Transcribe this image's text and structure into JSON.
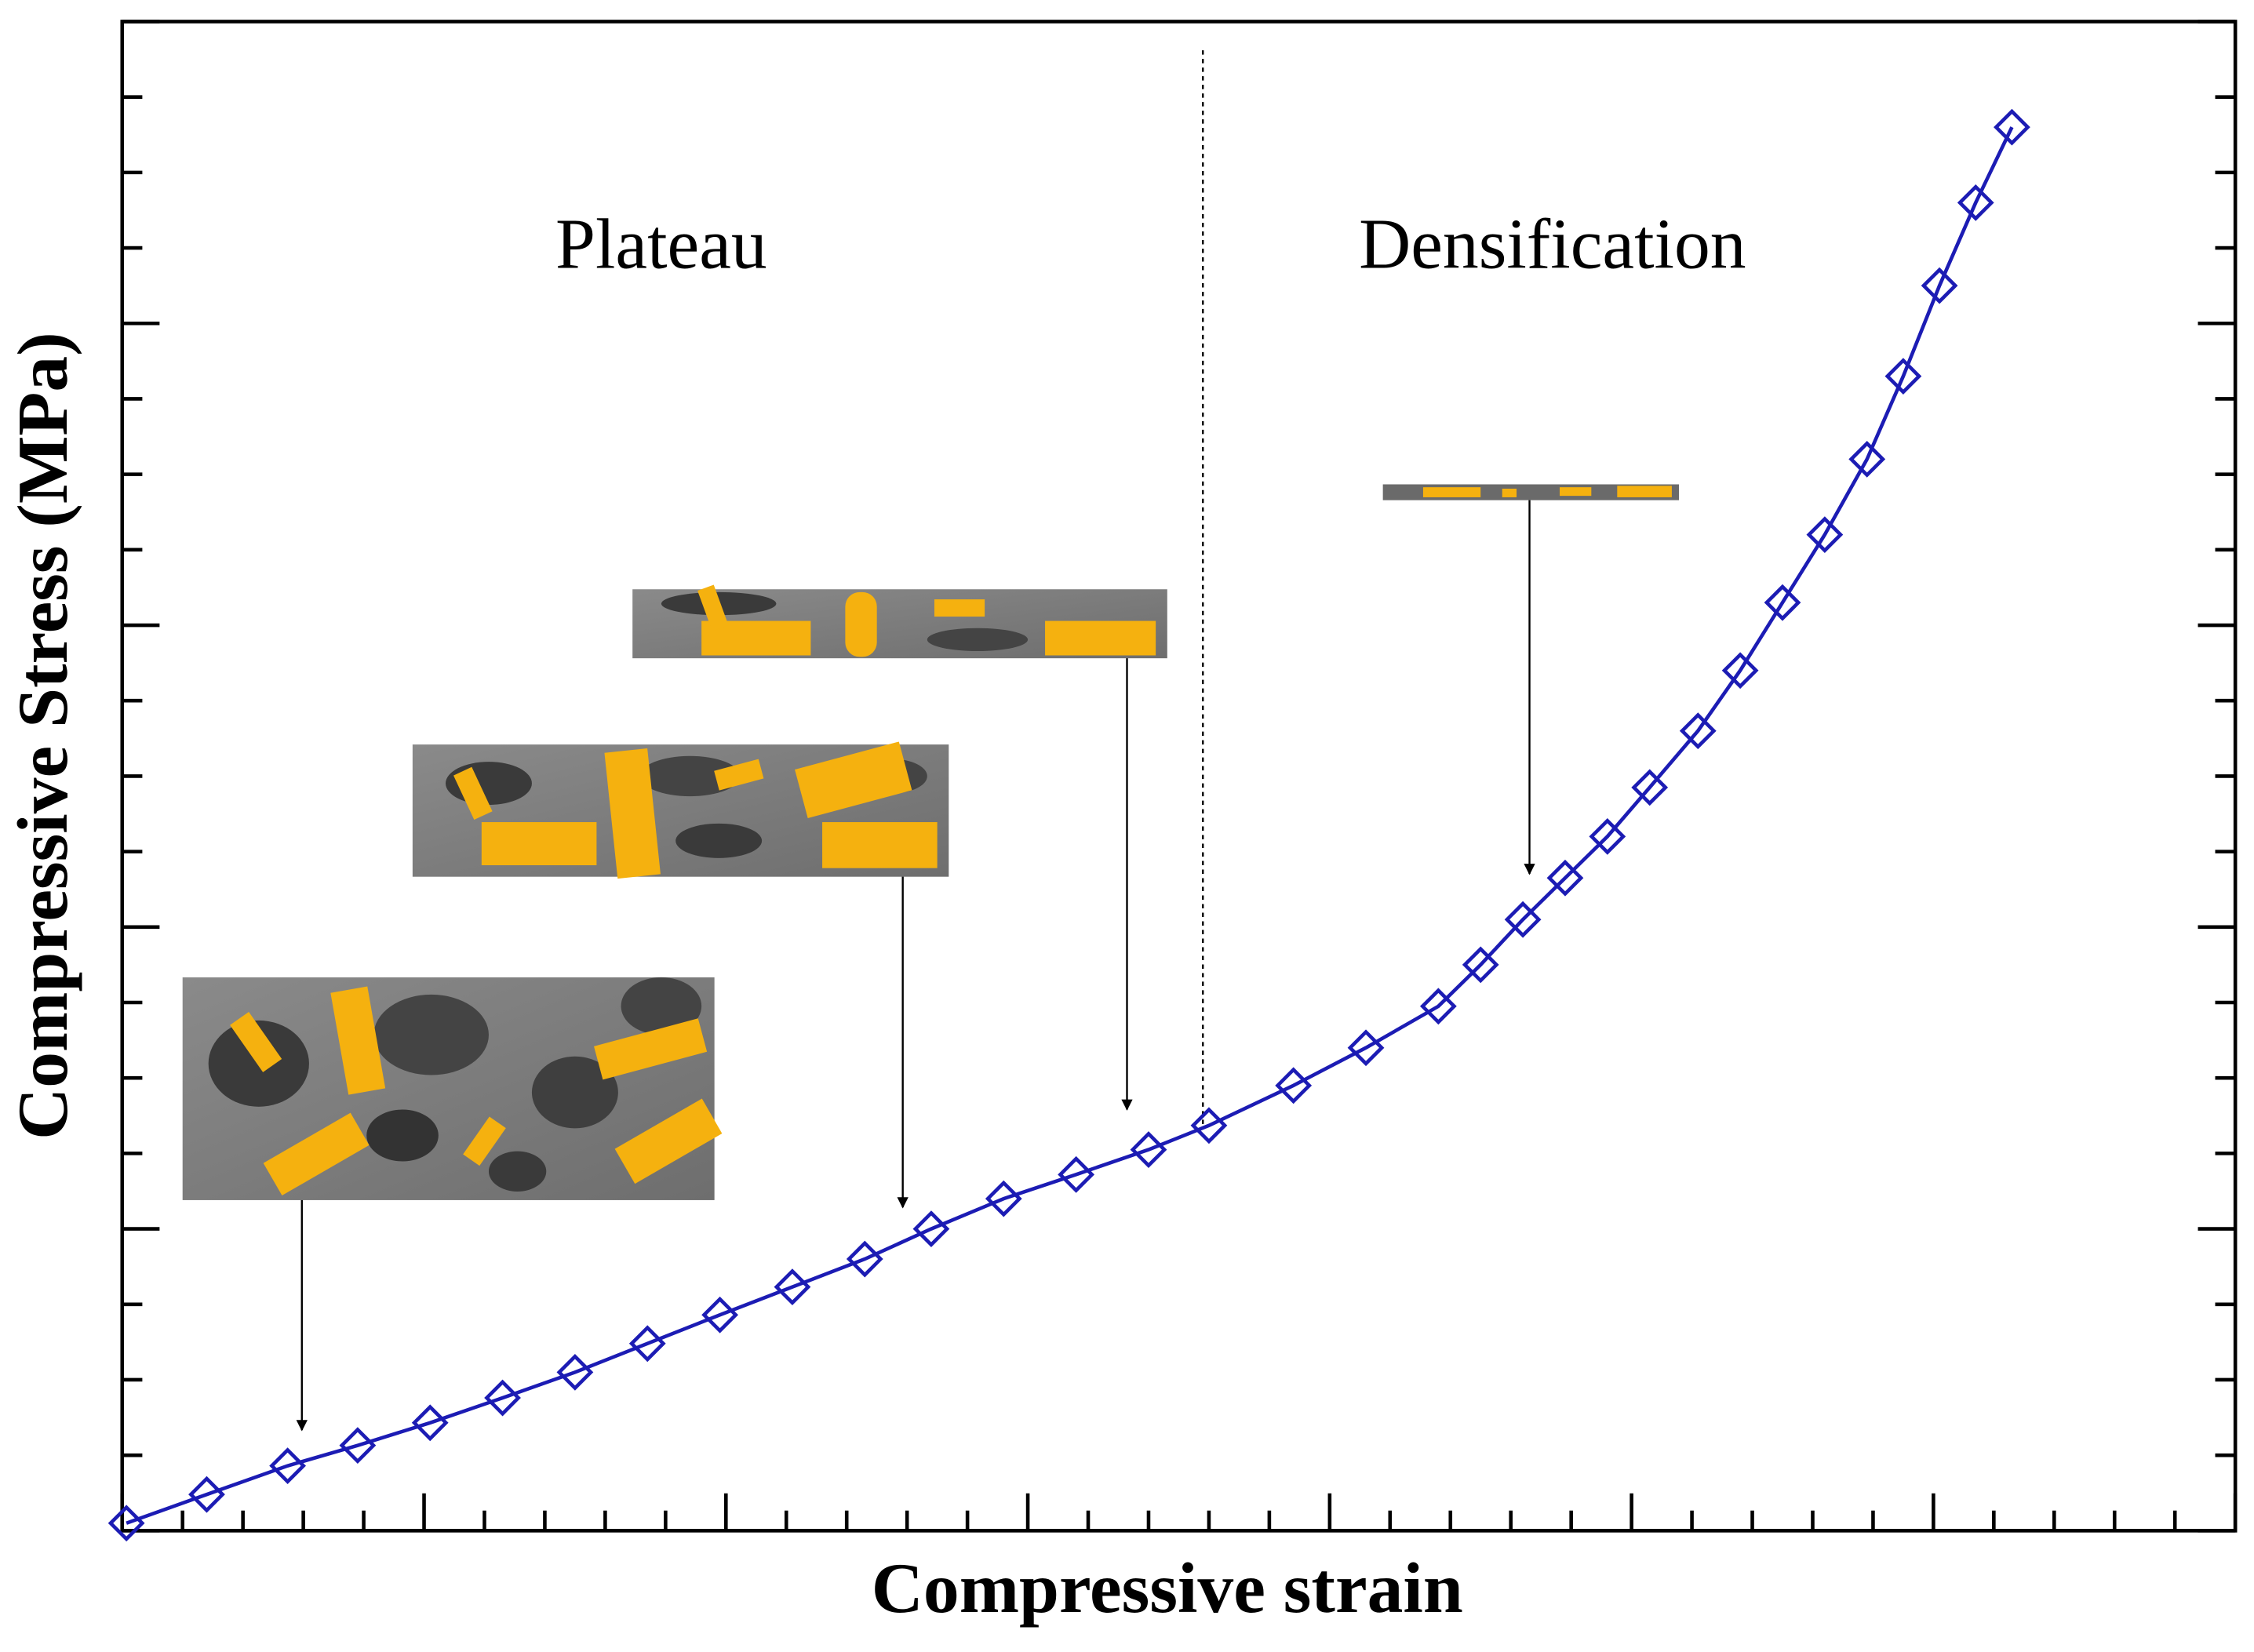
{
  "chart_data": {
    "type": "line",
    "x_label": "Compressive strain",
    "y_label": "Compressive Stress (MPa)",
    "regions": [
      "Plateau",
      "Densification"
    ],
    "boundary": 17.9,
    "x": [
      0.07,
      1.4,
      2.74,
      3.9,
      5.1,
      6.3,
      7.5,
      8.7,
      9.9,
      11.1,
      12.3,
      13.4,
      14.6,
      15.8,
      17.0,
      18.0,
      19.4,
      20.6,
      21.8,
      22.5,
      23.2,
      23.9,
      24.6,
      25.3,
      26.1,
      26.8,
      27.5,
      28.2,
      28.9,
      29.5,
      30.1,
      30.7,
      31.3
    ],
    "series": [
      {
        "name": null,
        "color": "#1c1cb4",
        "values": [
          0.1,
          0.48,
          0.86,
          1.13,
          1.43,
          1.76,
          2.1,
          2.48,
          2.86,
          3.23,
          3.6,
          4.0,
          4.4,
          4.72,
          5.05,
          5.37,
          5.9,
          6.4,
          6.95,
          7.5,
          8.1,
          8.65,
          9.2,
          9.85,
          10.6,
          11.4,
          12.3,
          13.2,
          14.2,
          15.3,
          16.5,
          17.6,
          18.6
        ]
      }
    ],
    "xlim": [
      0,
      35
    ],
    "ylim": [
      0,
      20
    ],
    "xticks": [
      0,
      1,
      2,
      3,
      4,
      5,
      6,
      7,
      8,
      9,
      10,
      11,
      12,
      13,
      14,
      15,
      16,
      17,
      18,
      19,
      20,
      21,
      22,
      23,
      24,
      25,
      26,
      27,
      28,
      29,
      30,
      31,
      32,
      33,
      34,
      35
    ],
    "yticks": [
      0,
      1,
      2,
      3,
      4,
      5,
      6,
      7,
      8,
      9,
      10,
      11,
      12,
      13,
      14,
      15,
      16,
      17,
      18,
      19,
      20
    ],
    "major_every": 5,
    "y_major_every": 4
  }
}
